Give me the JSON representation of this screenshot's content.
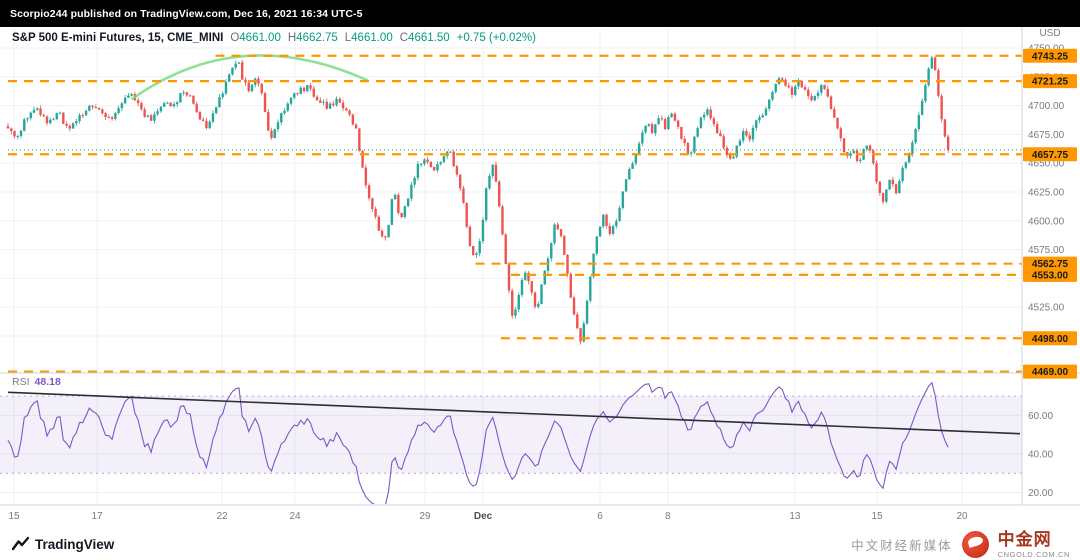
{
  "topbar": {
    "text": "Scorpio244 published on TradingView.com, Dec 16, 2021 16:34 UTC-5"
  },
  "legend": {
    "title": "S&P 500 E-mini Futures, 15, CME_MINI",
    "ohlc": [
      {
        "label": "O",
        "value": "4661.00"
      },
      {
        "label": "H",
        "value": "4662.75"
      },
      {
        "label": "L",
        "value": "4661.00"
      },
      {
        "label": "C",
        "value": "4661.50"
      }
    ],
    "change": "+0.75 (+0.02%)"
  },
  "rsi_legend": {
    "label": "RSI",
    "value": "48.18"
  },
  "axis": {
    "currency": "USD"
  },
  "footer": {
    "tradingview": "TradingView",
    "cn_name": "中金网",
    "cn_domain": "CNGOLD.COM.CN",
    "cn_tagline": "中文财经新媒体"
  },
  "chart_data": {
    "type": "candlestick",
    "symbol": "S&P 500 E-mini Futures",
    "interval": "15",
    "exchange": "CME_MINI",
    "last_price": 4661.5,
    "price_ticks": [
      4750,
      4725,
      4700,
      4675,
      4650,
      4625,
      4600,
      4575,
      4550,
      4525,
      4500
    ],
    "time_ticks": [
      {
        "label": "15",
        "f": 0.006
      },
      {
        "label": "17",
        "f": 0.088
      },
      {
        "label": "22",
        "f": 0.2115
      },
      {
        "label": "24",
        "f": 0.2836
      },
      {
        "label": "29",
        "f": 0.412
      },
      {
        "label": "Dec",
        "f": 0.4694,
        "major": true
      },
      {
        "label": "6",
        "f": 0.585
      },
      {
        "label": "8",
        "f": 0.652
      },
      {
        "label": "13",
        "f": 0.7776
      },
      {
        "label": "15",
        "f": 0.8587
      },
      {
        "label": "20",
        "f": 0.9427
      }
    ],
    "levels": [
      {
        "price": 4743.25,
        "label": "4743.25",
        "start_f": 0.205
      },
      {
        "price": 4721.25,
        "label": "4721.25",
        "start_f": 0
      },
      {
        "price": 4657.75,
        "label": "4657.75",
        "start_f": 0
      },
      {
        "price": 4562.75,
        "label": "4562.75",
        "start_f": 0.462
      },
      {
        "price": 4553.0,
        "label": "4553.00",
        "start_f": 0.497
      },
      {
        "price": 4498.0,
        "label": "4498.00",
        "start_f": 0.487
      },
      {
        "price": 4469.0,
        "label": "4469.00",
        "start_f": 0
      }
    ],
    "level_color": "#ff9800",
    "up_color": "#26a69a",
    "down_color": "#ef5350",
    "last_price_color": "#3f8f85",
    "candles": 290,
    "data_end_f": 0.929,
    "close_path": [
      [
        0,
        4681
      ],
      [
        0.008,
        4671
      ],
      [
        0.018,
        4690
      ],
      [
        0.028,
        4701
      ],
      [
        0.038,
        4684
      ],
      [
        0.05,
        4694
      ],
      [
        0.06,
        4678
      ],
      [
        0.072,
        4691
      ],
      [
        0.082,
        4701
      ],
      [
        0.092,
        4694
      ],
      [
        0.102,
        4687
      ],
      [
        0.112,
        4703
      ],
      [
        0.122,
        4711
      ],
      [
        0.132,
        4695
      ],
      [
        0.142,
        4686
      ],
      [
        0.152,
        4703
      ],
      [
        0.162,
        4698
      ],
      [
        0.172,
        4711
      ],
      [
        0.182,
        4706
      ],
      [
        0.19,
        4688
      ],
      [
        0.198,
        4681
      ],
      [
        0.206,
        4699
      ],
      [
        0.214,
        4717
      ],
      [
        0.222,
        4733
      ],
      [
        0.227,
        4742
      ],
      [
        0.232,
        4722
      ],
      [
        0.238,
        4713
      ],
      [
        0.245,
        4723
      ],
      [
        0.252,
        4707
      ],
      [
        0.259,
        4668
      ],
      [
        0.267,
        4686
      ],
      [
        0.276,
        4701
      ],
      [
        0.285,
        4712
      ],
      [
        0.295,
        4716
      ],
      [
        0.305,
        4707
      ],
      [
        0.315,
        4699
      ],
      [
        0.325,
        4704
      ],
      [
        0.335,
        4695
      ],
      [
        0.344,
        4678
      ],
      [
        0.352,
        4638
      ],
      [
        0.36,
        4610
      ],
      [
        0.368,
        4588
      ],
      [
        0.374,
        4585
      ],
      [
        0.381,
        4628
      ],
      [
        0.388,
        4600
      ],
      [
        0.396,
        4623
      ],
      [
        0.404,
        4646
      ],
      [
        0.412,
        4656
      ],
      [
        0.42,
        4641
      ],
      [
        0.428,
        4653
      ],
      [
        0.436,
        4661
      ],
      [
        0.444,
        4639
      ],
      [
        0.45,
        4614
      ],
      [
        0.456,
        4578
      ],
      [
        0.462,
        4569
      ],
      [
        0.468,
        4591
      ],
      [
        0.474,
        4638
      ],
      [
        0.48,
        4649
      ],
      [
        0.486,
        4608
      ],
      [
        0.492,
        4563
      ],
      [
        0.498,
        4516
      ],
      [
        0.504,
        4531
      ],
      [
        0.51,
        4556
      ],
      [
        0.516,
        4547
      ],
      [
        0.522,
        4519
      ],
      [
        0.528,
        4546
      ],
      [
        0.534,
        4567
      ],
      [
        0.54,
        4597
      ],
      [
        0.546,
        4589
      ],
      [
        0.552,
        4558
      ],
      [
        0.558,
        4524
      ],
      [
        0.565,
        4494
      ],
      [
        0.571,
        4521
      ],
      [
        0.577,
        4561
      ],
      [
        0.583,
        4592
      ],
      [
        0.589,
        4606
      ],
      [
        0.595,
        4586
      ],
      [
        0.601,
        4601
      ],
      [
        0.607,
        4622
      ],
      [
        0.613,
        4641
      ],
      [
        0.619,
        4656
      ],
      [
        0.625,
        4672
      ],
      [
        0.631,
        4686
      ],
      [
        0.637,
        4676
      ],
      [
        0.643,
        4691
      ],
      [
        0.649,
        4681
      ],
      [
        0.655,
        4696
      ],
      [
        0.661,
        4686
      ],
      [
        0.667,
        4669
      ],
      [
        0.673,
        4655
      ],
      [
        0.679,
        4673
      ],
      [
        0.685,
        4691
      ],
      [
        0.691,
        4697
      ],
      [
        0.697,
        4686
      ],
      [
        0.703,
        4674
      ],
      [
        0.709,
        4659
      ],
      [
        0.715,
        4650
      ],
      [
        0.721,
        4666
      ],
      [
        0.727,
        4681
      ],
      [
        0.733,
        4671
      ],
      [
        0.739,
        4686
      ],
      [
        0.745,
        4693
      ],
      [
        0.751,
        4701
      ],
      [
        0.757,
        4716
      ],
      [
        0.763,
        4723
      ],
      [
        0.769,
        4718
      ],
      [
        0.775,
        4711
      ],
      [
        0.781,
        4721
      ],
      [
        0.787,
        4716
      ],
      [
        0.793,
        4701
      ],
      [
        0.799,
        4711
      ],
      [
        0.805,
        4718
      ],
      [
        0.811,
        4704
      ],
      [
        0.817,
        4689
      ],
      [
        0.823,
        4671
      ],
      [
        0.829,
        4654
      ],
      [
        0.835,
        4663
      ],
      [
        0.841,
        4649
      ],
      [
        0.847,
        4666
      ],
      [
        0.853,
        4659
      ],
      [
        0.859,
        4631
      ],
      [
        0.865,
        4616
      ],
      [
        0.871,
        4636
      ],
      [
        0.877,
        4624
      ],
      [
        0.883,
        4641
      ],
      [
        0.889,
        4656
      ],
      [
        0.895,
        4673
      ],
      [
        0.901,
        4697
      ],
      [
        0.907,
        4722
      ],
      [
        0.912,
        4742
      ],
      [
        0.917,
        4729
      ],
      [
        0.922,
        4688
      ],
      [
        0.929,
        4661.5
      ]
    ],
    "arc": {
      "f": [
        0.123,
        0.229,
        0.355
      ],
      "p": [
        4706,
        4772,
        4722
      ],
      "color": "#7ddc84"
    },
    "rsi": {
      "period": 14,
      "value": 48.18,
      "grid": [
        20,
        40,
        60
      ],
      "bands": [
        30,
        70
      ],
      "band_fill": "rgba(126,87,194,0.09)",
      "band_edge": "#b9a2e3",
      "line_color": "#7e57c2",
      "trendline": {
        "from_rsi": 72,
        "to_rsi": 50.5
      },
      "trendline_color": "#2a2e39"
    }
  }
}
